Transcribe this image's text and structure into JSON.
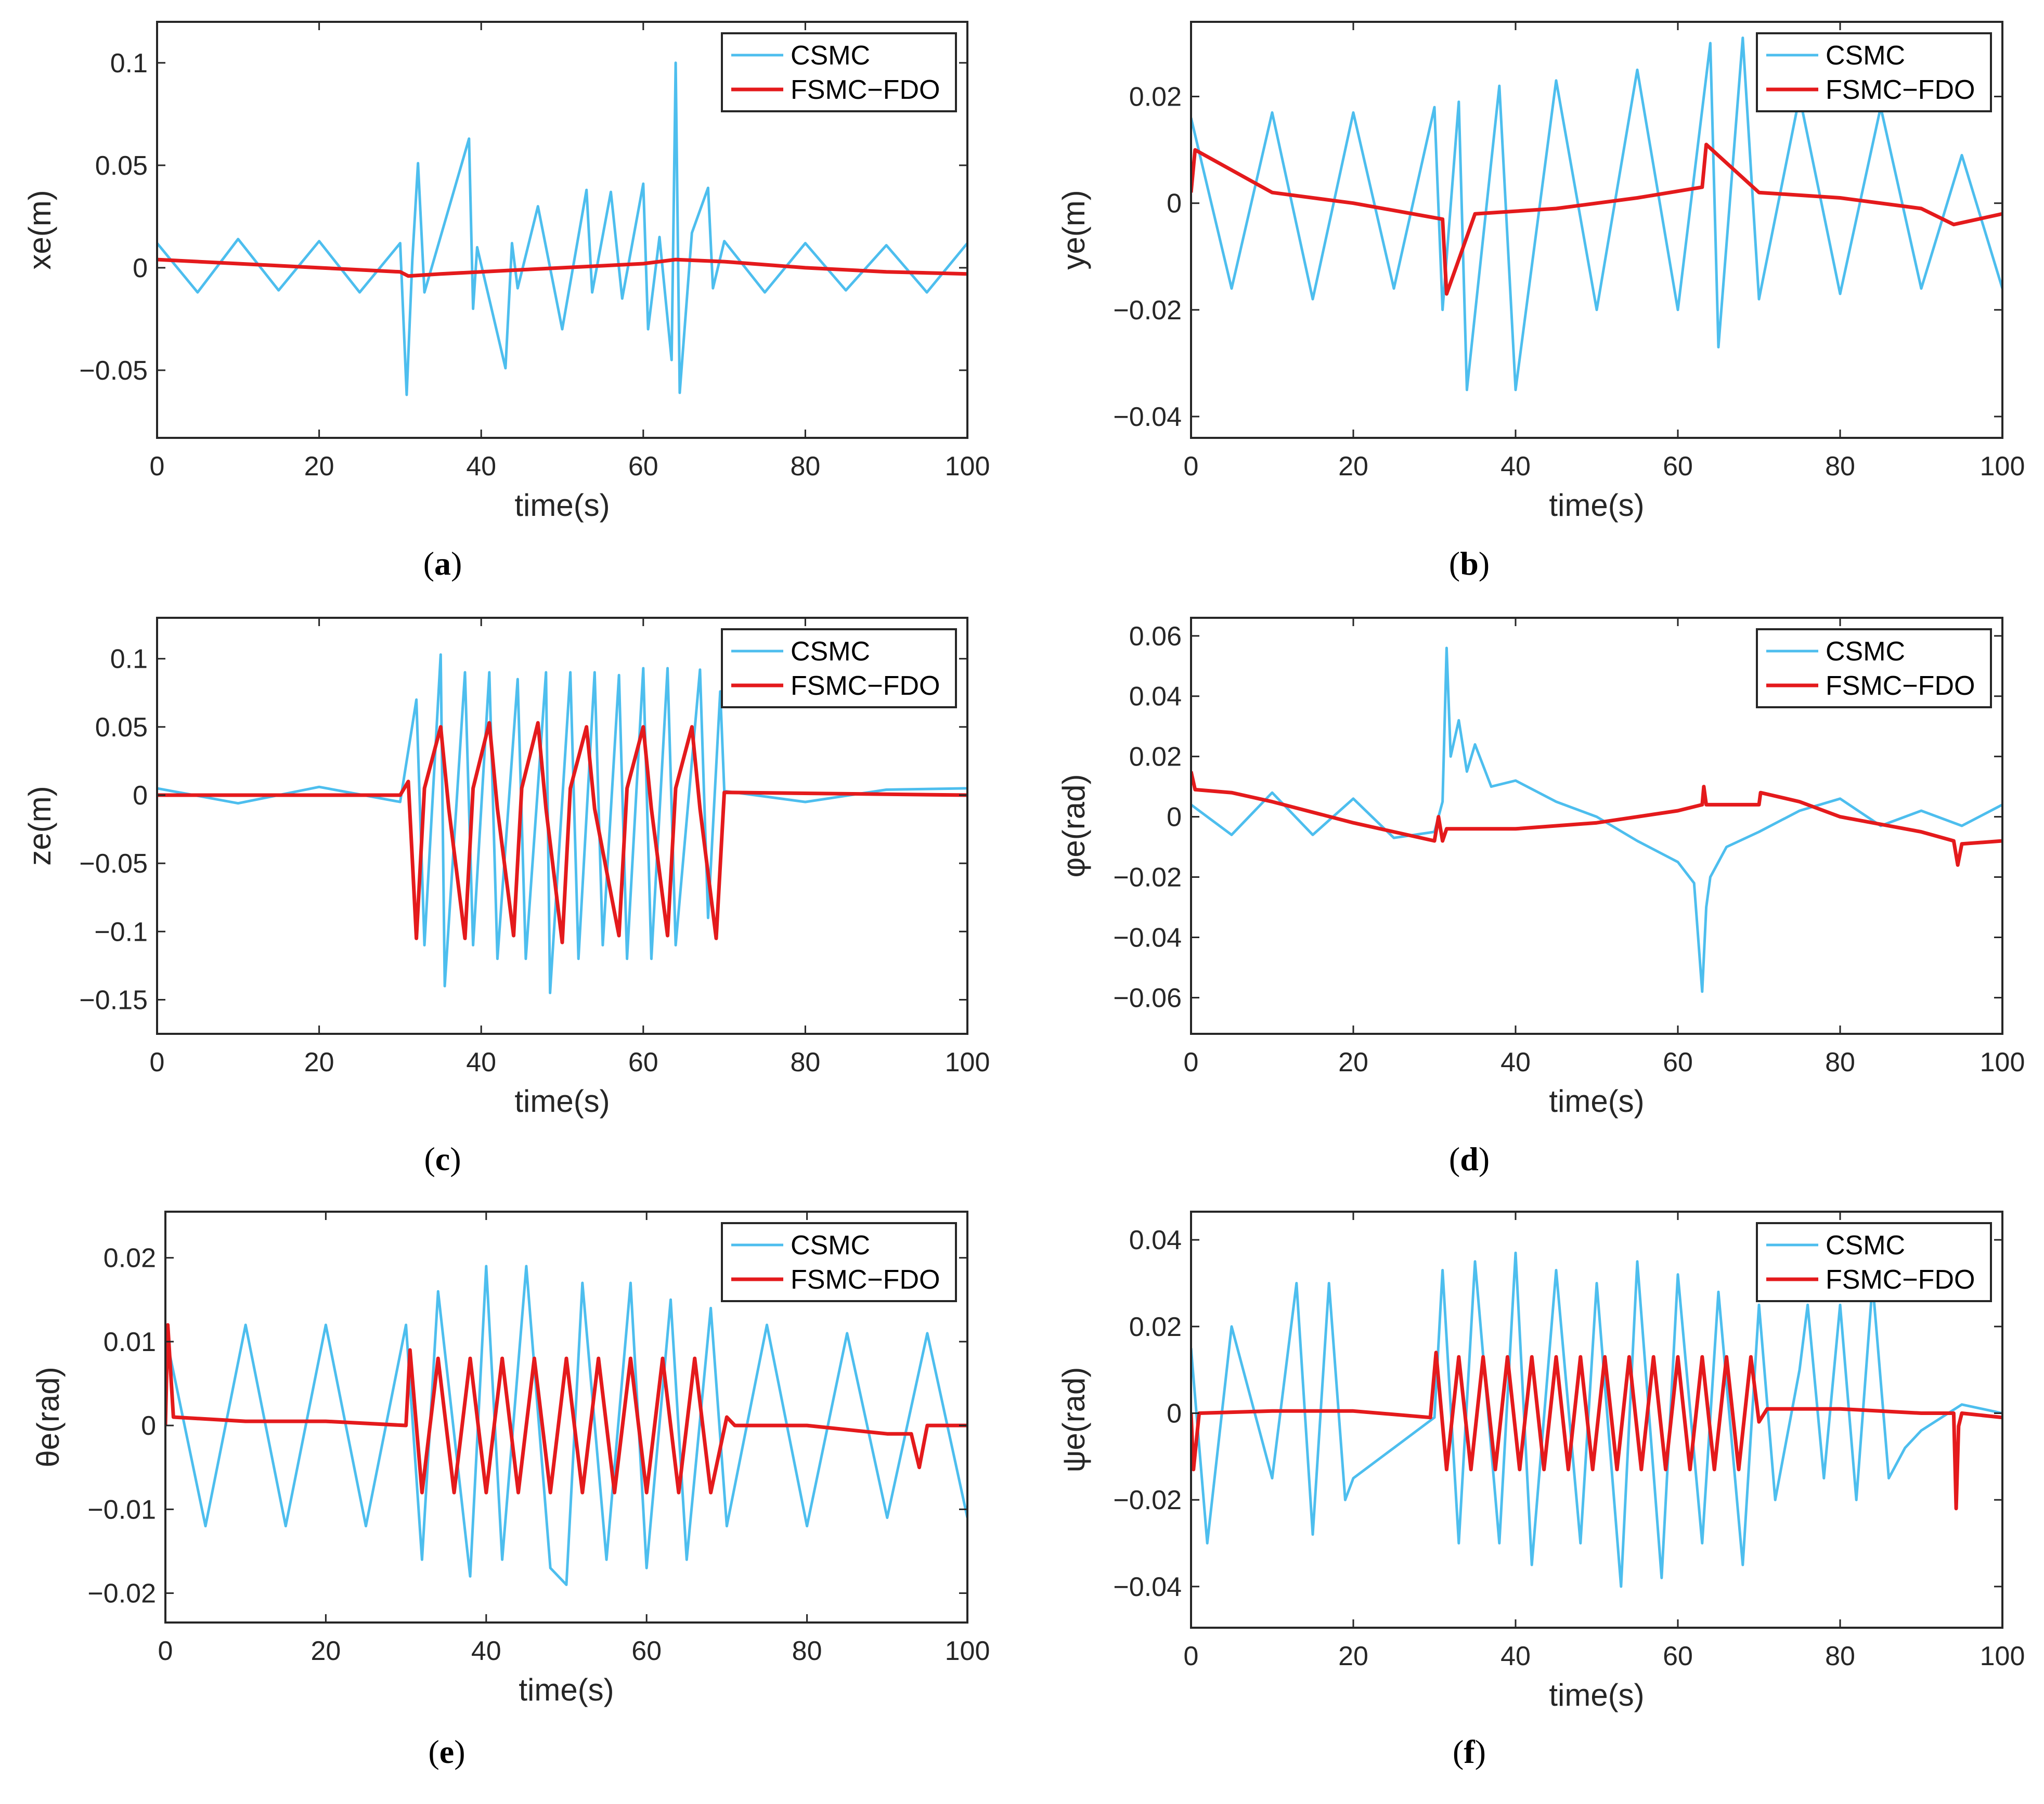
{
  "figure": {
    "series_names": [
      "CSMC",
      "FSMC−FDO"
    ],
    "series_colors": [
      "#4DBEEE",
      "#E41A1C"
    ]
  },
  "chart_data": [
    {
      "type": "line",
      "panel": "a",
      "caption": {
        "open": "(",
        "letter": "a",
        "close": ")"
      },
      "xlabel": "time(s)",
      "ylabel": "xe(m)",
      "xlim": [
        0,
        100
      ],
      "ylim": [
        -0.083,
        0.12
      ],
      "xticks": [
        0,
        20,
        40,
        60,
        80,
        100
      ],
      "xticklabels": [
        "0",
        "20",
        "40",
        "60",
        "80",
        "100"
      ],
      "yticks": [
        -0.05,
        0,
        0.05,
        0.1
      ],
      "yticklabels": [
        "−0.05",
        "0",
        "0.05",
        "0.1"
      ],
      "legend": {
        "location": "top-right",
        "entries": [
          "CSMC",
          "FSMC−FDO"
        ]
      },
      "series": [
        {
          "name": "CSMC",
          "color": "#4DBEEE",
          "x": [
            0,
            5,
            10,
            15,
            20,
            25,
            30,
            30.8,
            31.5,
            32.2,
            33,
            38.5,
            39,
            39.5,
            43,
            43.8,
            44.5,
            47,
            50,
            53,
            53.7,
            56,
            57.4,
            60,
            60.6,
            62,
            63.5,
            64,
            64.5,
            66,
            68,
            68.6,
            70,
            75,
            80,
            85,
            90,
            95,
            100
          ],
          "values": [
            0.012,
            -0.012,
            0.014,
            -0.011,
            0.013,
            -0.012,
            0.012,
            -0.062,
            0.004,
            0.051,
            -0.012,
            0.063,
            -0.02,
            0.01,
            -0.049,
            0.012,
            -0.01,
            0.03,
            -0.03,
            0.038,
            -0.012,
            0.037,
            -0.015,
            0.041,
            -0.03,
            0.015,
            -0.045,
            0.1,
            -0.061,
            0.017,
            0.039,
            -0.01,
            0.013,
            -0.012,
            0.012,
            -0.011,
            0.011,
            -0.012,
            0.012
          ]
        },
        {
          "name": "FSMC−FDO",
          "color": "#E41A1C",
          "x": [
            0,
            10,
            20,
            30,
            31,
            35,
            40,
            45,
            50,
            55,
            60,
            64,
            70,
            80,
            90,
            100
          ],
          "values": [
            0.004,
            0.002,
            0.0,
            -0.002,
            -0.004,
            -0.003,
            -0.002,
            -0.001,
            0.0,
            0.001,
            0.002,
            0.004,
            0.003,
            0.0,
            -0.002,
            -0.003
          ]
        }
      ]
    },
    {
      "type": "line",
      "panel": "b",
      "caption": {
        "open": "(",
        "letter": "b",
        "close": ")"
      },
      "xlabel": "time(s)",
      "ylabel": "ye(m)",
      "xlim": [
        0,
        100
      ],
      "ylim": [
        -0.044,
        0.034
      ],
      "xticks": [
        0,
        20,
        40,
        60,
        80,
        100
      ],
      "xticklabels": [
        "0",
        "20",
        "40",
        "60",
        "80",
        "100"
      ],
      "yticks": [
        -0.04,
        -0.02,
        0,
        0.02
      ],
      "yticklabels": [
        "−0.04",
        "−0.02",
        "0",
        "0.02"
      ],
      "legend": {
        "location": "top-right",
        "entries": [
          "CSMC",
          "FSMC−FDO"
        ]
      },
      "series": [
        {
          "name": "CSMC",
          "color": "#4DBEEE",
          "x": [
            0,
            5,
            10,
            15,
            20,
            25,
            30,
            31,
            33,
            34,
            38,
            40,
            45,
            50,
            55,
            60,
            64,
            65,
            68,
            70,
            75,
            80,
            85,
            90,
            95,
            100
          ],
          "values": [
            0.016,
            -0.016,
            0.017,
            -0.018,
            0.017,
            -0.016,
            0.018,
            -0.02,
            0.019,
            -0.035,
            0.022,
            -0.035,
            0.023,
            -0.02,
            0.025,
            -0.02,
            0.03,
            -0.027,
            0.031,
            -0.018,
            0.02,
            -0.017,
            0.018,
            -0.016,
            0.009,
            -0.016
          ]
        },
        {
          "name": "FSMC−FDO",
          "color": "#E41A1C",
          "x": [
            0,
            0.5,
            10,
            20,
            31,
            31.5,
            35,
            45,
            55,
            63,
            63.5,
            70,
            80,
            90,
            94,
            100
          ],
          "values": [
            0.002,
            0.01,
            0.002,
            0.0,
            -0.003,
            -0.017,
            -0.002,
            -0.001,
            0.001,
            0.003,
            0.011,
            0.002,
            0.001,
            -0.001,
            -0.004,
            -0.002
          ]
        }
      ]
    },
    {
      "type": "line",
      "panel": "c",
      "caption": {
        "open": "(",
        "letter": "c",
        "close": ")"
      },
      "xlabel": "time(s)",
      "ylabel": "ze(m)",
      "xlim": [
        0,
        100
      ],
      "ylim": [
        -0.175,
        0.13
      ],
      "xticks": [
        0,
        20,
        40,
        60,
        80,
        100
      ],
      "xticklabels": [
        "0",
        "20",
        "40",
        "60",
        "80",
        "100"
      ],
      "yticks": [
        -0.15,
        -0.1,
        -0.05,
        0,
        0.05,
        0.1
      ],
      "yticklabels": [
        "−0.15",
        "−0.1",
        "−0.05",
        "0",
        "0.05",
        "0.1"
      ],
      "legend": {
        "location": "top-right",
        "entries": [
          "CSMC",
          "FSMC−FDO"
        ]
      },
      "series": [
        {
          "name": "CSMC",
          "color": "#4DBEEE",
          "x": [
            0,
            10,
            20,
            30,
            32,
            33,
            35,
            35.5,
            38,
            39,
            41,
            42,
            44.5,
            45.5,
            48,
            48.5,
            51,
            52,
            54,
            55,
            57,
            58,
            60,
            61,
            63,
            64,
            67,
            68,
            69.5,
            70,
            80,
            90,
            100
          ],
          "values": [
            0.005,
            -0.006,
            0.006,
            -0.005,
            0.07,
            -0.11,
            0.103,
            -0.14,
            0.09,
            -0.11,
            0.09,
            -0.12,
            0.085,
            -0.12,
            0.09,
            -0.145,
            0.09,
            -0.12,
            0.09,
            -0.11,
            0.088,
            -0.12,
            0.093,
            -0.12,
            0.093,
            -0.11,
            0.092,
            -0.09,
            0.076,
            0.003,
            -0.005,
            0.004,
            0.005
          ]
        },
        {
          "name": "FSMC−FDO",
          "color": "#E41A1C",
          "x": [
            0,
            30,
            31,
            32,
            33,
            35,
            36,
            38,
            39,
            41,
            42,
            44,
            45,
            47,
            48,
            50,
            51,
            53,
            54,
            57,
            58,
            60,
            61,
            63,
            64,
            66,
            67,
            69,
            70,
            100
          ],
          "values": [
            0,
            0,
            0.01,
            -0.105,
            0.005,
            0.05,
            -0.01,
            -0.105,
            0.005,
            0.053,
            -0.01,
            -0.103,
            0.005,
            0.053,
            -0.01,
            -0.108,
            0.005,
            0.05,
            -0.01,
            -0.103,
            0.005,
            0.05,
            -0.01,
            -0.103,
            0.005,
            0.05,
            -0.01,
            -0.105,
            0.002,
            0
          ]
        }
      ]
    },
    {
      "type": "line",
      "panel": "d",
      "caption": {
        "open": "(",
        "letter": "d",
        "close": ")"
      },
      "xlabel": "time(s)",
      "ylabel": "φe(rad)",
      "xlim": [
        0,
        100
      ],
      "ylim": [
        -0.072,
        0.066
      ],
      "xticks": [
        0,
        20,
        40,
        60,
        80,
        100
      ],
      "xticklabels": [
        "0",
        "20",
        "40",
        "60",
        "80",
        "100"
      ],
      "yticks": [
        -0.06,
        -0.04,
        -0.02,
        0,
        0.02,
        0.04,
        0.06
      ],
      "yticklabels": [
        "−0.06",
        "−0.04",
        "−0.02",
        "0",
        "0.02",
        "0.04",
        "0.06"
      ],
      "legend": {
        "location": "top-right",
        "entries": [
          "CSMC",
          "FSMC−FDO"
        ]
      },
      "series": [
        {
          "name": "CSMC",
          "color": "#4DBEEE",
          "x": [
            0,
            5,
            10,
            15,
            20,
            25,
            30,
            31,
            31.5,
            32,
            33,
            34,
            35,
            37,
            40,
            45,
            50,
            55,
            60,
            62,
            63,
            63.5,
            64,
            66,
            70,
            75,
            80,
            85,
            90,
            95,
            100
          ],
          "values": [
            0.004,
            -0.006,
            0.008,
            -0.006,
            0.006,
            -0.007,
            -0.005,
            0.005,
            0.056,
            0.02,
            0.032,
            0.015,
            0.024,
            0.01,
            0.012,
            0.005,
            0.0,
            -0.008,
            -0.015,
            -0.022,
            -0.058,
            -0.03,
            -0.02,
            -0.01,
            -0.005,
            0.002,
            0.006,
            -0.003,
            0.002,
            -0.003,
            0.004
          ]
        },
        {
          "name": "FSMC−FDO",
          "color": "#E41A1C",
          "x": [
            0,
            0.5,
            5,
            10,
            20,
            30,
            30.5,
            31,
            31.5,
            40,
            50,
            60,
            63,
            63.2,
            63.5,
            70,
            70.2,
            75,
            80,
            90,
            94,
            94.5,
            95,
            100
          ],
          "values": [
            0.015,
            0.009,
            0.008,
            0.005,
            -0.002,
            -0.008,
            0.0,
            -0.008,
            -0.004,
            -0.004,
            -0.002,
            0.002,
            0.004,
            0.01,
            0.004,
            0.004,
            0.008,
            0.005,
            0.0,
            -0.005,
            -0.008,
            -0.016,
            -0.009,
            -0.008
          ]
        }
      ]
    },
    {
      "type": "line",
      "panel": "e",
      "caption": {
        "open": "(",
        "letter": "e",
        "close": ")"
      },
      "xlabel": "time(s)",
      "ylabel": "θe(rad)",
      "xlim": [
        0,
        100
      ],
      "ylim": [
        -0.0235,
        0.0255
      ],
      "xticks": [
        0,
        20,
        40,
        60,
        80,
        100
      ],
      "xticklabels": [
        "0",
        "20",
        "40",
        "60",
        "80",
        "100"
      ],
      "yticks": [
        -0.02,
        -0.01,
        0,
        0.01,
        0.02
      ],
      "yticklabels": [
        "−0.02",
        "−0.01",
        "0",
        "0.01",
        "0.02"
      ],
      "legend": {
        "location": "top-right",
        "entries": [
          "CSMC",
          "FSMC−FDO"
        ]
      },
      "series": [
        {
          "name": "CSMC",
          "color": "#4DBEEE",
          "x": [
            0,
            5,
            10,
            15,
            20,
            25,
            30,
            32,
            34,
            38,
            40,
            42,
            45,
            48,
            50,
            52,
            55,
            58,
            60,
            63,
            65,
            68,
            70,
            75,
            80,
            85,
            90,
            95,
            100
          ],
          "values": [
            0.011,
            -0.012,
            0.012,
            -0.012,
            0.012,
            -0.012,
            0.012,
            -0.016,
            0.016,
            -0.018,
            0.019,
            -0.016,
            0.019,
            -0.017,
            -0.019,
            0.017,
            -0.016,
            0.017,
            -0.017,
            0.015,
            -0.016,
            0.014,
            -0.012,
            0.012,
            -0.012,
            0.011,
            -0.011,
            0.011,
            -0.011
          ]
        },
        {
          "name": "FSMC−FDO",
          "color": "#E41A1C",
          "x": [
            0,
            0.3,
            1,
            10,
            20,
            30,
            30.5,
            32,
            34,
            36,
            38,
            40,
            42,
            44,
            46,
            48,
            50,
            52,
            54,
            56,
            58,
            60,
            62,
            64,
            66,
            68,
            70,
            71,
            80,
            90,
            93,
            94,
            95,
            100
          ],
          "values": [
            0.0,
            0.012,
            0.001,
            0.0005,
            0.0005,
            0.0,
            0.009,
            -0.008,
            0.008,
            -0.008,
            0.008,
            -0.008,
            0.008,
            -0.008,
            0.008,
            -0.008,
            0.008,
            -0.008,
            0.008,
            -0.008,
            0.008,
            -0.008,
            0.008,
            -0.008,
            0.008,
            -0.008,
            0.001,
            0.0,
            0.0,
            -0.001,
            -0.001,
            -0.005,
            0.0,
            0.0
          ]
        }
      ]
    },
    {
      "type": "line",
      "panel": "f",
      "caption": {
        "open": "(",
        "letter": "f",
        "close": ")"
      },
      "xlabel": "time(s)",
      "ylabel": "ψe(rad)",
      "xlim": [
        0,
        100
      ],
      "ylim": [
        -0.0495,
        0.0465
      ],
      "xticks": [
        0,
        20,
        40,
        60,
        80,
        100
      ],
      "xticklabels": [
        "0",
        "20",
        "40",
        "60",
        "80",
        "100"
      ],
      "yticks": [
        -0.04,
        -0.02,
        0,
        0.02,
        0.04
      ],
      "yticklabels": [
        "−0.04",
        "−0.02",
        "0",
        "0.02",
        "0.04"
      ],
      "legend": {
        "location": "top-right",
        "entries": [
          "CSMC",
          "FSMC−FDO"
        ]
      },
      "series": [
        {
          "name": "CSMC",
          "color": "#4DBEEE",
          "x": [
            0,
            2,
            5,
            10,
            13,
            15,
            17,
            19,
            20,
            25,
            30,
            31,
            33,
            35,
            38,
            40,
            42,
            45,
            48,
            50,
            53,
            55,
            58,
            60,
            63,
            65,
            68,
            70,
            72,
            75,
            76,
            78,
            80,
            82,
            84,
            86,
            88,
            90,
            95,
            100
          ],
          "values": [
            0.015,
            -0.03,
            0.02,
            -0.015,
            0.03,
            -0.028,
            0.03,
            -0.02,
            -0.015,
            -0.008,
            -0.001,
            0.033,
            -0.03,
            0.035,
            -0.03,
            0.037,
            -0.035,
            0.033,
            -0.03,
            0.03,
            -0.04,
            0.035,
            -0.038,
            0.032,
            -0.03,
            0.028,
            -0.035,
            0.025,
            -0.02,
            0.01,
            0.025,
            -0.015,
            0.025,
            -0.02,
            0.03,
            -0.015,
            -0.008,
            -0.004,
            0.002,
            0.0
          ]
        },
        {
          "name": "FSMC−FDO",
          "color": "#E41A1C",
          "x": [
            0,
            0.3,
            1,
            10,
            20,
            29.5,
            30.2,
            31.5,
            33,
            34.5,
            36,
            37.5,
            39,
            40.5,
            42,
            43.5,
            45,
            46.5,
            48,
            49.5,
            51,
            52.5,
            54,
            55.5,
            57,
            58.5,
            60,
            61.5,
            63,
            64.5,
            66,
            67.5,
            69,
            70,
            71,
            80,
            90,
            94,
            94.3,
            94.6,
            95,
            100
          ],
          "values": [
            0.0,
            -0.013,
            0.0,
            0.0005,
            0.0005,
            -0.001,
            0.014,
            -0.013,
            0.013,
            -0.013,
            0.013,
            -0.013,
            0.013,
            -0.013,
            0.013,
            -0.013,
            0.013,
            -0.013,
            0.013,
            -0.013,
            0.013,
            -0.013,
            0.013,
            -0.013,
            0.013,
            -0.013,
            0.013,
            -0.013,
            0.013,
            -0.013,
            0.013,
            -0.013,
            0.013,
            -0.002,
            0.001,
            0.001,
            0.0,
            0.0,
            -0.022,
            -0.003,
            0.0,
            -0.001
          ]
        }
      ]
    }
  ]
}
